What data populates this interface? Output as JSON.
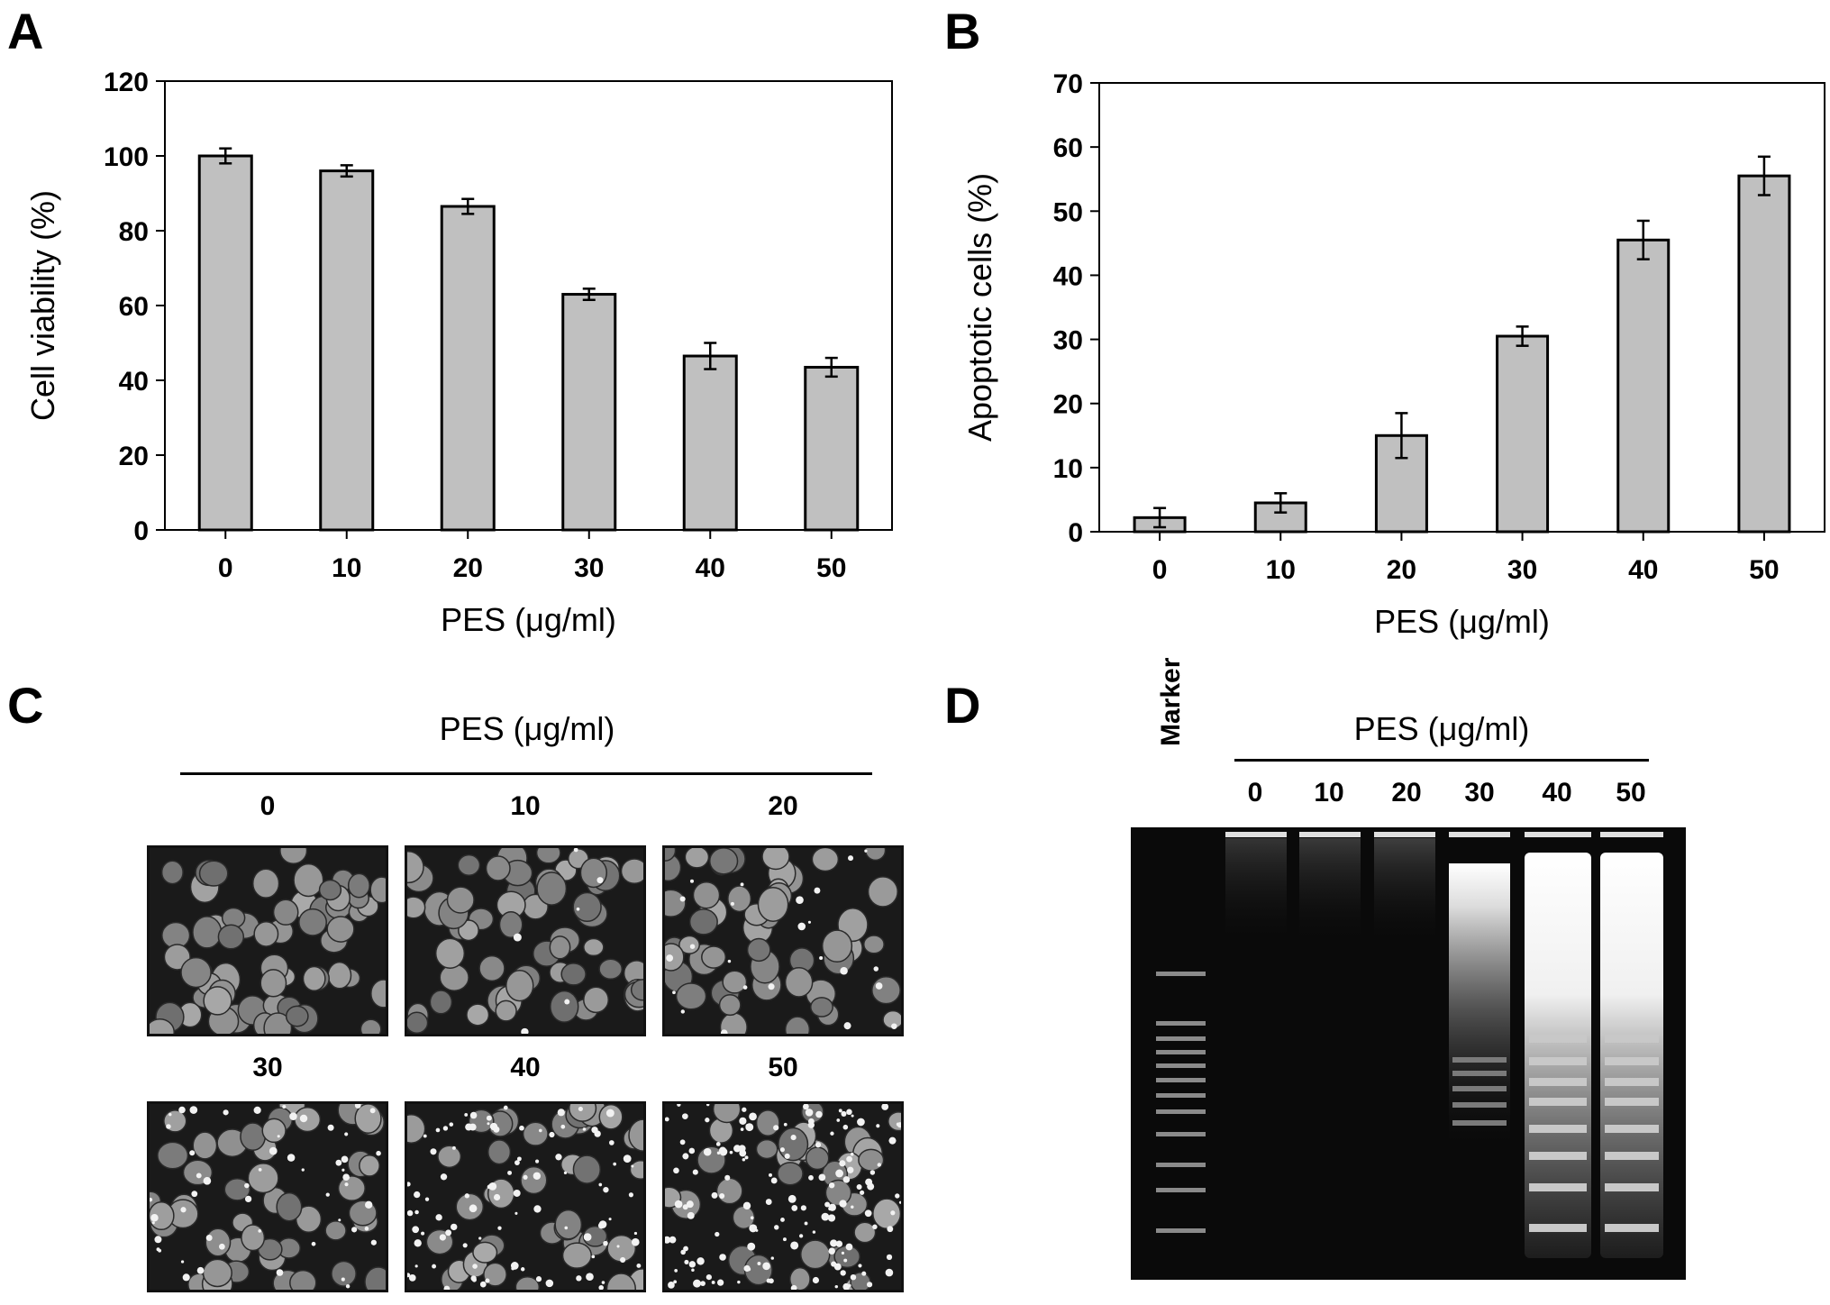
{
  "panels": {
    "A": {
      "letter": "A"
    },
    "B": {
      "letter": "B"
    },
    "C": {
      "letter": "C",
      "header": "PES (μg/ml)",
      "labels": [
        "0",
        "10",
        "20",
        "30",
        "40",
        "50"
      ]
    },
    "D": {
      "letter": "D",
      "header": "PES (μg/ml)",
      "marker_label": "Marker",
      "lanes": [
        "0",
        "10",
        "20",
        "30",
        "40",
        "50"
      ]
    }
  },
  "chart_data": [
    {
      "panel": "A",
      "type": "bar",
      "categories": [
        "0",
        "10",
        "20",
        "30",
        "40",
        "50"
      ],
      "values": [
        100,
        96,
        86.5,
        63,
        46.5,
        43.5
      ],
      "errors": [
        2.0,
        1.5,
        2.0,
        1.5,
        3.5,
        2.5
      ],
      "xlabel": "PES (μg/ml)",
      "ylabel": "Cell viability (%)",
      "ylim": [
        0,
        120
      ],
      "yticks": [
        0,
        20,
        40,
        60,
        80,
        100,
        120
      ],
      "bar_color": "#c0c0c0",
      "grid": false
    },
    {
      "panel": "B",
      "type": "bar",
      "categories": [
        "0",
        "10",
        "20",
        "30",
        "40",
        "50"
      ],
      "values": [
        2.2,
        4.5,
        15,
        30.5,
        45.5,
        55.5
      ],
      "errors": [
        1.5,
        1.5,
        3.5,
        1.5,
        3.0,
        3.0
      ],
      "xlabel": "PES (μg/ml)",
      "ylabel": "Apoptotic cells (%)",
      "ylim": [
        0,
        70
      ],
      "yticks": [
        0,
        10,
        20,
        30,
        40,
        50,
        60,
        70
      ],
      "bar_color": "#c0c0c0",
      "grid": false
    }
  ]
}
